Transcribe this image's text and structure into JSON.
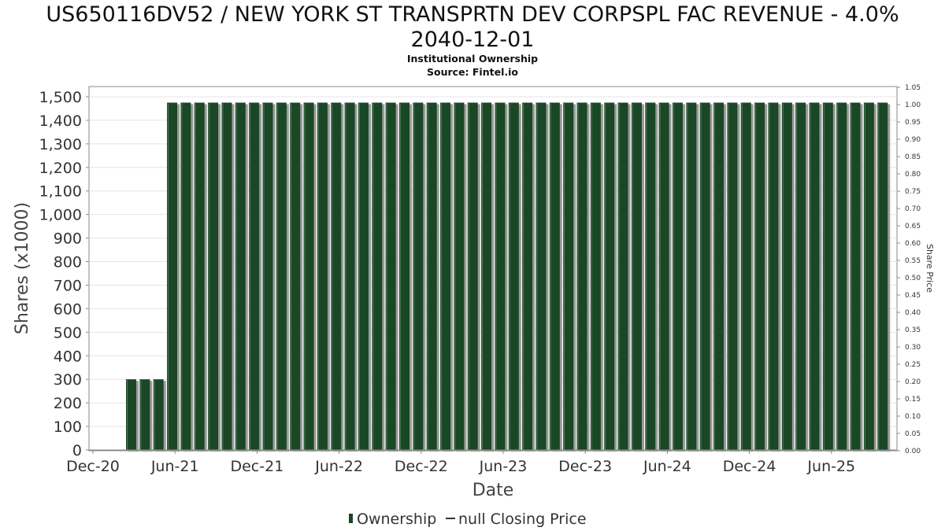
{
  "title": {
    "line1": "US650116DV52 / NEW YORK ST TRANSPRTN DEV CORPSPL FAC REVENUE - 4.0%",
    "line2": "2040-12-01",
    "subtitle": "Institutional Ownership",
    "source": "Source: Fintel.io"
  },
  "legend": {
    "ownership_label": "Ownership",
    "price_label": "null Closing Price"
  },
  "colors": {
    "bar": "#1a4725",
    "bar_shadow": "#9a9a9a",
    "grid": "#e4e4e4",
    "axis": "#888888"
  },
  "chart_data": {
    "type": "bar",
    "title": "US650116DV52 / NEW YORK ST TRANSPRTN DEV CORPSPL FAC REVENUE - 4.0% 2040-12-01",
    "xlabel": "Date",
    "ylabel": "Shares (x1000)",
    "y2label": "Share Price",
    "ylim": [
      0,
      1550
    ],
    "y2lim": [
      0,
      1.05
    ],
    "yticks": [
      0,
      100,
      200,
      300,
      400,
      500,
      600,
      700,
      800,
      900,
      1000,
      1100,
      1200,
      1300,
      1400,
      1500
    ],
    "ytick_labels": [
      "0",
      "100",
      "200",
      "300",
      "400",
      "500",
      "600",
      "700",
      "800",
      "900",
      "1,000",
      "1,100",
      "1,200",
      "1,300",
      "1,400",
      "1,500"
    ],
    "y2tick_labels": [
      "0.00",
      "0.05",
      "0.10",
      "0.15",
      "0.20",
      "0.25",
      "0.30",
      "0.35",
      "0.40",
      "0.45",
      "0.50",
      "0.55",
      "0.60",
      "0.65",
      "0.70",
      "0.75",
      "0.80",
      "0.85",
      "0.90",
      "0.95",
      "1.00",
      "1.05"
    ],
    "xtick_labels": [
      "Dec-20",
      "Jun-21",
      "Dec-21",
      "Jun-22",
      "Dec-22",
      "Jun-23",
      "Dec-23",
      "Jun-24",
      "Dec-24",
      "Jun-25"
    ],
    "grid": true,
    "legend_position": "bottom-center",
    "series": [
      {
        "name": "Ownership",
        "values": [
          300,
          300,
          300,
          1475,
          1475,
          1475,
          1475,
          1475,
          1475,
          1475,
          1475,
          1475,
          1475,
          1475,
          1475,
          1475,
          1475,
          1475,
          1475,
          1475,
          1475,
          1475,
          1475,
          1475,
          1475,
          1475,
          1475,
          1475,
          1475,
          1475,
          1475,
          1475,
          1475,
          1475,
          1475,
          1475,
          1475,
          1475,
          1475,
          1475,
          1475,
          1475,
          1475,
          1475,
          1475,
          1475,
          1475,
          1475,
          1475,
          1475,
          1475,
          1475,
          1475,
          1475,
          1475,
          1475
        ]
      }
    ]
  }
}
